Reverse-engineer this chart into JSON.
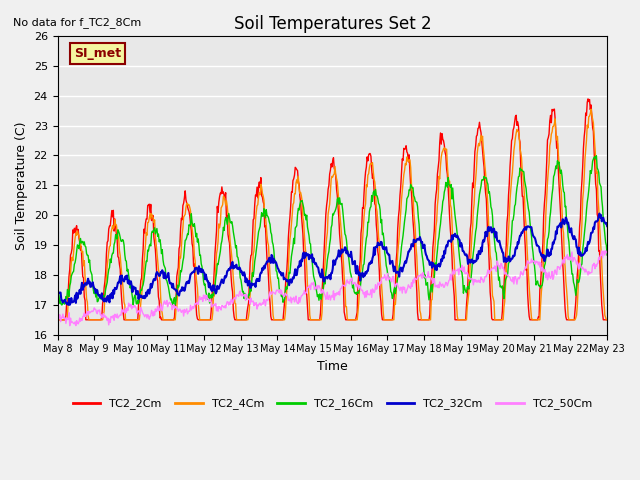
{
  "title": "Soil Temperatures Set 2",
  "subtitle": "No data for f_TC2_8Cm",
  "xlabel": "Time",
  "ylabel": "Soil Temperature (C)",
  "ylim": [
    16.0,
    26.0
  ],
  "yticks": [
    16.0,
    17.0,
    18.0,
    19.0,
    20.0,
    21.0,
    22.0,
    23.0,
    24.0,
    25.0,
    26.0
  ],
  "x_tick_labels": [
    "May 8",
    "May 9",
    "May 10",
    "May 11",
    "May 12",
    "May 13",
    "May 14",
    "May 15",
    "May 16",
    "May 17",
    "May 18",
    "May 19",
    "May 20",
    "May 21",
    "May 22",
    "May 23"
  ],
  "colors": {
    "TC2_2Cm": "#ff0000",
    "TC2_4Cm": "#ff8c00",
    "TC2_16Cm": "#00cc00",
    "TC2_32Cm": "#0000cc",
    "TC2_50Cm": "#ff80ff"
  },
  "legend_labels": [
    "TC2_2Cm",
    "TC2_4Cm",
    "TC2_16Cm",
    "TC2_32Cm",
    "TC2_50Cm"
  ],
  "annotation_box": "SI_met",
  "background_color": "#e8e8e8",
  "plot_bg_color": "#e8e8e8",
  "n_days": 15,
  "points_per_day": 48
}
